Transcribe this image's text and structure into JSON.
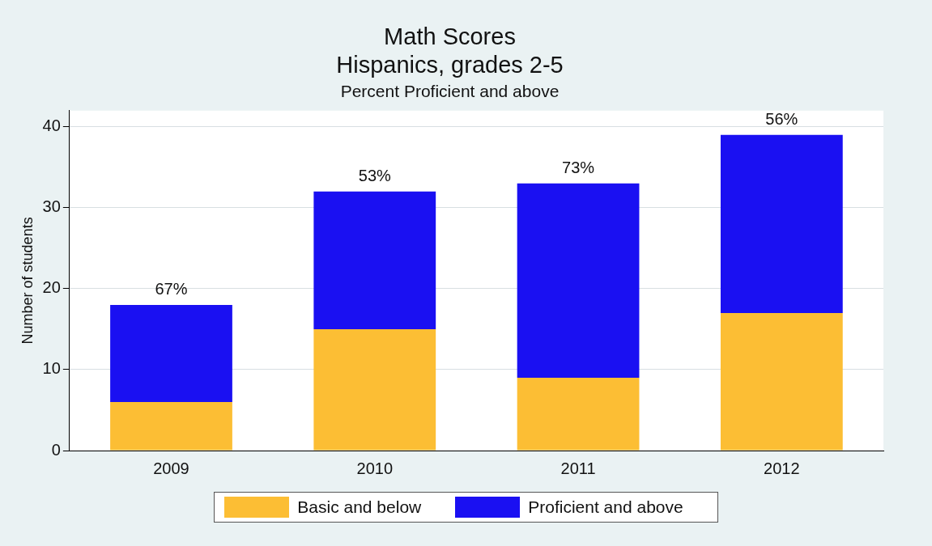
{
  "chart_data": {
    "type": "bar",
    "title": "Math Scores\nHispanics, grades 2-5",
    "subtitle": "Percent Proficient and above",
    "ylabel": "Number of students",
    "categories": [
      "2009",
      "2010",
      "2011",
      "2012"
    ],
    "stacked": true,
    "series": [
      {
        "name": "Basic and below",
        "color": "#fcbe34",
        "values": [
          6,
          15,
          9,
          17
        ]
      },
      {
        "name": "Proficient and above",
        "color": "#1a10f2",
        "values": [
          12,
          17,
          24,
          22
        ]
      }
    ],
    "ylim": [
      0,
      42
    ],
    "yticks": [
      0,
      10,
      20,
      30,
      40
    ],
    "grid": "y",
    "legend": "bottom",
    "annotations": [
      {
        "text": "67%",
        "x": "2009",
        "y": 18
      },
      {
        "text": "53%",
        "x": "2010",
        "y": 32
      },
      {
        "text": "73%",
        "x": "2011",
        "y": 33
      },
      {
        "text": "56%",
        "x": "2012",
        "y": 39
      }
    ]
  }
}
